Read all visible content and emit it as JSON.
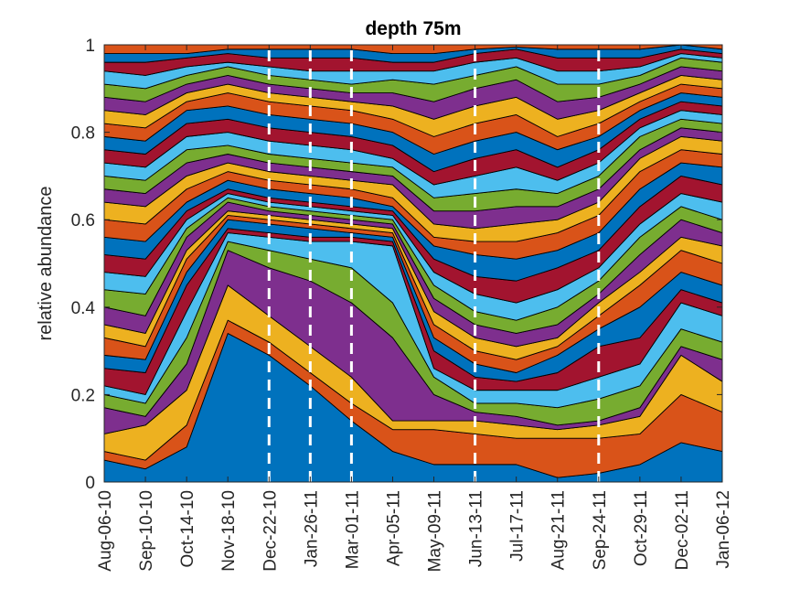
{
  "chart_data": {
    "type": "area",
    "title": "depth 75m",
    "xlabel": "",
    "ylabel": "relative abundance",
    "categories": [
      "Aug-06-10",
      "Sep-10-10",
      "Oct-14-10",
      "Nov-18-10",
      "Dec-22-10",
      "Jan-26-11",
      "Mar-01-11",
      "Apr-05-11",
      "May-09-11",
      "Jun-13-11",
      "Jul-17-11",
      "Aug-21-11",
      "Sep-24-11",
      "Oct-29-11",
      "Dec-02-11",
      "Jan-06-12"
    ],
    "ylim": [
      0,
      1
    ],
    "yticks": [
      0,
      0.2,
      0.4,
      0.6,
      0.8,
      1
    ],
    "ytick_labels": [
      "0",
      "0.2",
      "0.4",
      "0.6",
      "0.8",
      "1"
    ],
    "grid": false,
    "stacked": true,
    "palette": [
      "#0072BD",
      "#D95319",
      "#EDB120",
      "#7E2F8E",
      "#77AC30",
      "#4DBEEE",
      "#A2142F"
    ],
    "dashed_lines": {
      "color": "#ffffff",
      "at": [
        "Dec-22-10",
        "Jan-26-11",
        "Mar-01-11",
        "Jun-13-11",
        "Sep-24-11"
      ]
    },
    "cumulative_boundaries": [
      [
        0.05,
        0.03,
        0.08,
        0.34,
        0.29,
        0.22,
        0.14,
        0.07,
        0.04,
        0.04,
        0.04,
        0.01,
        0.02,
        0.04,
        0.09,
        0.07
      ],
      [
        0.07,
        0.05,
        0.13,
        0.37,
        0.32,
        0.25,
        0.18,
        0.12,
        0.12,
        0.11,
        0.1,
        0.1,
        0.1,
        0.11,
        0.2,
        0.16
      ],
      [
        0.11,
        0.13,
        0.21,
        0.45,
        0.38,
        0.31,
        0.24,
        0.14,
        0.14,
        0.14,
        0.13,
        0.12,
        0.13,
        0.15,
        0.29,
        0.23
      ],
      [
        0.17,
        0.15,
        0.27,
        0.53,
        0.49,
        0.46,
        0.41,
        0.33,
        0.2,
        0.16,
        0.15,
        0.13,
        0.14,
        0.17,
        0.31,
        0.28
      ],
      [
        0.2,
        0.18,
        0.33,
        0.55,
        0.53,
        0.51,
        0.49,
        0.41,
        0.24,
        0.18,
        0.18,
        0.17,
        0.19,
        0.22,
        0.35,
        0.32
      ],
      [
        0.22,
        0.2,
        0.39,
        0.57,
        0.56,
        0.55,
        0.55,
        0.54,
        0.26,
        0.21,
        0.21,
        0.21,
        0.24,
        0.27,
        0.41,
        0.38
      ],
      [
        0.26,
        0.25,
        0.45,
        0.58,
        0.57,
        0.56,
        0.56,
        0.55,
        0.3,
        0.24,
        0.23,
        0.25,
        0.31,
        0.33,
        0.44,
        0.41
      ],
      [
        0.29,
        0.28,
        0.48,
        0.6,
        0.59,
        0.58,
        0.57,
        0.56,
        0.33,
        0.27,
        0.25,
        0.29,
        0.35,
        0.4,
        0.48,
        0.45
      ],
      [
        0.33,
        0.31,
        0.51,
        0.61,
        0.6,
        0.59,
        0.58,
        0.57,
        0.36,
        0.3,
        0.28,
        0.31,
        0.38,
        0.45,
        0.53,
        0.5
      ],
      [
        0.36,
        0.34,
        0.53,
        0.62,
        0.61,
        0.6,
        0.59,
        0.58,
        0.39,
        0.33,
        0.31,
        0.33,
        0.41,
        0.48,
        0.56,
        0.54
      ],
      [
        0.4,
        0.38,
        0.56,
        0.64,
        0.62,
        0.61,
        0.6,
        0.59,
        0.42,
        0.36,
        0.34,
        0.36,
        0.43,
        0.52,
        0.6,
        0.57
      ],
      [
        0.44,
        0.43,
        0.58,
        0.65,
        0.63,
        0.62,
        0.61,
        0.6,
        0.45,
        0.39,
        0.37,
        0.4,
        0.46,
        0.56,
        0.63,
        0.6
      ],
      [
        0.48,
        0.47,
        0.6,
        0.66,
        0.64,
        0.63,
        0.62,
        0.61,
        0.48,
        0.43,
        0.41,
        0.44,
        0.49,
        0.59,
        0.66,
        0.64
      ],
      [
        0.52,
        0.51,
        0.62,
        0.67,
        0.65,
        0.64,
        0.63,
        0.62,
        0.51,
        0.47,
        0.46,
        0.49,
        0.53,
        0.63,
        0.7,
        0.68
      ],
      [
        0.56,
        0.55,
        0.64,
        0.69,
        0.67,
        0.66,
        0.65,
        0.63,
        0.54,
        0.52,
        0.51,
        0.53,
        0.57,
        0.67,
        0.73,
        0.72
      ],
      [
        0.6,
        0.59,
        0.67,
        0.71,
        0.69,
        0.68,
        0.67,
        0.65,
        0.56,
        0.55,
        0.55,
        0.57,
        0.61,
        0.71,
        0.76,
        0.75
      ],
      [
        0.64,
        0.63,
        0.7,
        0.73,
        0.71,
        0.7,
        0.69,
        0.68,
        0.59,
        0.58,
        0.59,
        0.6,
        0.64,
        0.74,
        0.79,
        0.78
      ],
      [
        0.67,
        0.66,
        0.73,
        0.75,
        0.73,
        0.72,
        0.71,
        0.7,
        0.62,
        0.62,
        0.63,
        0.63,
        0.67,
        0.76,
        0.81,
        0.8
      ],
      [
        0.7,
        0.69,
        0.76,
        0.77,
        0.75,
        0.74,
        0.73,
        0.72,
        0.65,
        0.66,
        0.67,
        0.66,
        0.7,
        0.79,
        0.83,
        0.82
      ],
      [
        0.73,
        0.72,
        0.79,
        0.8,
        0.78,
        0.77,
        0.76,
        0.74,
        0.68,
        0.7,
        0.72,
        0.69,
        0.73,
        0.81,
        0.85,
        0.84
      ],
      [
        0.76,
        0.75,
        0.82,
        0.83,
        0.81,
        0.8,
        0.79,
        0.77,
        0.71,
        0.74,
        0.76,
        0.72,
        0.76,
        0.83,
        0.87,
        0.86
      ],
      [
        0.79,
        0.78,
        0.85,
        0.86,
        0.84,
        0.83,
        0.82,
        0.8,
        0.75,
        0.78,
        0.8,
        0.76,
        0.79,
        0.85,
        0.89,
        0.88
      ],
      [
        0.82,
        0.81,
        0.87,
        0.89,
        0.87,
        0.86,
        0.85,
        0.83,
        0.79,
        0.82,
        0.84,
        0.79,
        0.82,
        0.87,
        0.91,
        0.9
      ],
      [
        0.85,
        0.84,
        0.89,
        0.91,
        0.89,
        0.88,
        0.87,
        0.86,
        0.83,
        0.86,
        0.88,
        0.83,
        0.85,
        0.89,
        0.93,
        0.92
      ],
      [
        0.88,
        0.87,
        0.91,
        0.93,
        0.91,
        0.9,
        0.89,
        0.89,
        0.87,
        0.9,
        0.92,
        0.87,
        0.88,
        0.91,
        0.95,
        0.94
      ],
      [
        0.91,
        0.9,
        0.93,
        0.95,
        0.93,
        0.92,
        0.91,
        0.92,
        0.91,
        0.93,
        0.95,
        0.91,
        0.91,
        0.93,
        0.97,
        0.96
      ],
      [
        0.94,
        0.93,
        0.95,
        0.96,
        0.95,
        0.94,
        0.94,
        0.94,
        0.94,
        0.96,
        0.97,
        0.94,
        0.94,
        0.95,
        0.98,
        0.97
      ],
      [
        0.96,
        0.96,
        0.97,
        0.98,
        0.97,
        0.97,
        0.97,
        0.96,
        0.96,
        0.98,
        0.99,
        0.97,
        0.97,
        0.97,
        0.99,
        0.98
      ],
      [
        0.98,
        0.98,
        0.98,
        0.99,
        0.99,
        0.99,
        0.99,
        0.98,
        0.98,
        0.99,
        0.995,
        0.99,
        0.99,
        0.99,
        1.0,
        0.99
      ],
      [
        1,
        1,
        1,
        1,
        1,
        1,
        1,
        1,
        1,
        1,
        1,
        1,
        1,
        1,
        1,
        1
      ]
    ]
  }
}
